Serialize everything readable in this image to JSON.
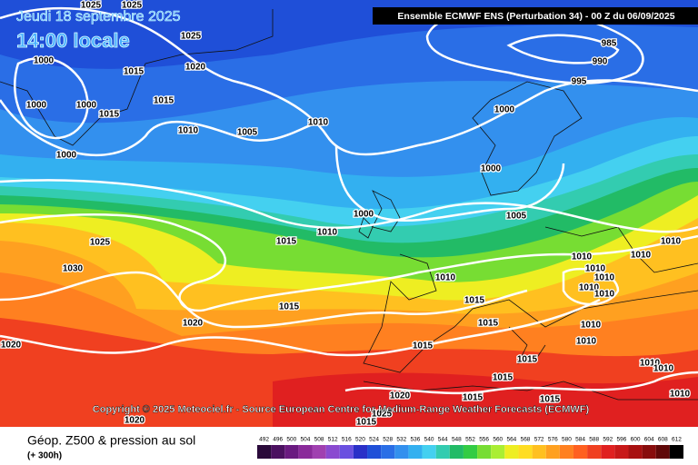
{
  "header": {
    "date": "Jeudi 18 septembre 2025",
    "time": "14:00 locale",
    "model": "Ensemble ECMWF ENS  (Perturbation 34)  -  00 Z du 06/09/2025"
  },
  "copyright": "Copyright © 2025 Meteociel.fr - Source European Centre for Medium-Range Weather Forecasts (ECMWF)",
  "isobar_labels": [
    1025,
    1025,
    1025,
    1000,
    1015,
    1020,
    1000,
    1000,
    1015,
    1015,
    1010,
    1005,
    1010,
    1000,
    985,
    990,
    995,
    1000,
    1000,
    1000,
    1005,
    1010,
    1015,
    1025,
    1030,
    1010,
    1010,
    1010,
    1010,
    1010,
    1010,
    1010,
    1010,
    1015,
    1015,
    1020,
    1020,
    1015,
    1015,
    1010,
    1010,
    1015,
    1015,
    1010,
    1010,
    1010,
    1020,
    1015,
    1020,
    1025,
    1015,
    1015
  ],
  "legend": {
    "title": "Géop. Z500 & pression au sol",
    "lead": "(+ 300h)",
    "levels": [
      492,
      496,
      500,
      504,
      508,
      512,
      516,
      520,
      524,
      528,
      532,
      536,
      540,
      544,
      548,
      552,
      556,
      560,
      564,
      568,
      572,
      576,
      580,
      584,
      588,
      592,
      596,
      600,
      604,
      608,
      612
    ],
    "colors": [
      "#2a0a3a",
      "#4b1060",
      "#6a1a80",
      "#8a2a9a",
      "#a040b0",
      "#8a4ad0",
      "#6a50e0",
      "#2a30c8",
      "#1f4fd8",
      "#2a6ee6",
      "#3390ee",
      "#33b0f0",
      "#44d0f0",
      "#33ccb0",
      "#22bb66",
      "#33cc44",
      "#77dd33",
      "#aaee33",
      "#eeee22",
      "#ffdd22",
      "#ffc020",
      "#ffa020",
      "#ff8020",
      "#ff6020",
      "#f04020",
      "#e02020",
      "#c81818",
      "#a81010",
      "#880c0c",
      "#600808",
      "#000000"
    ]
  }
}
